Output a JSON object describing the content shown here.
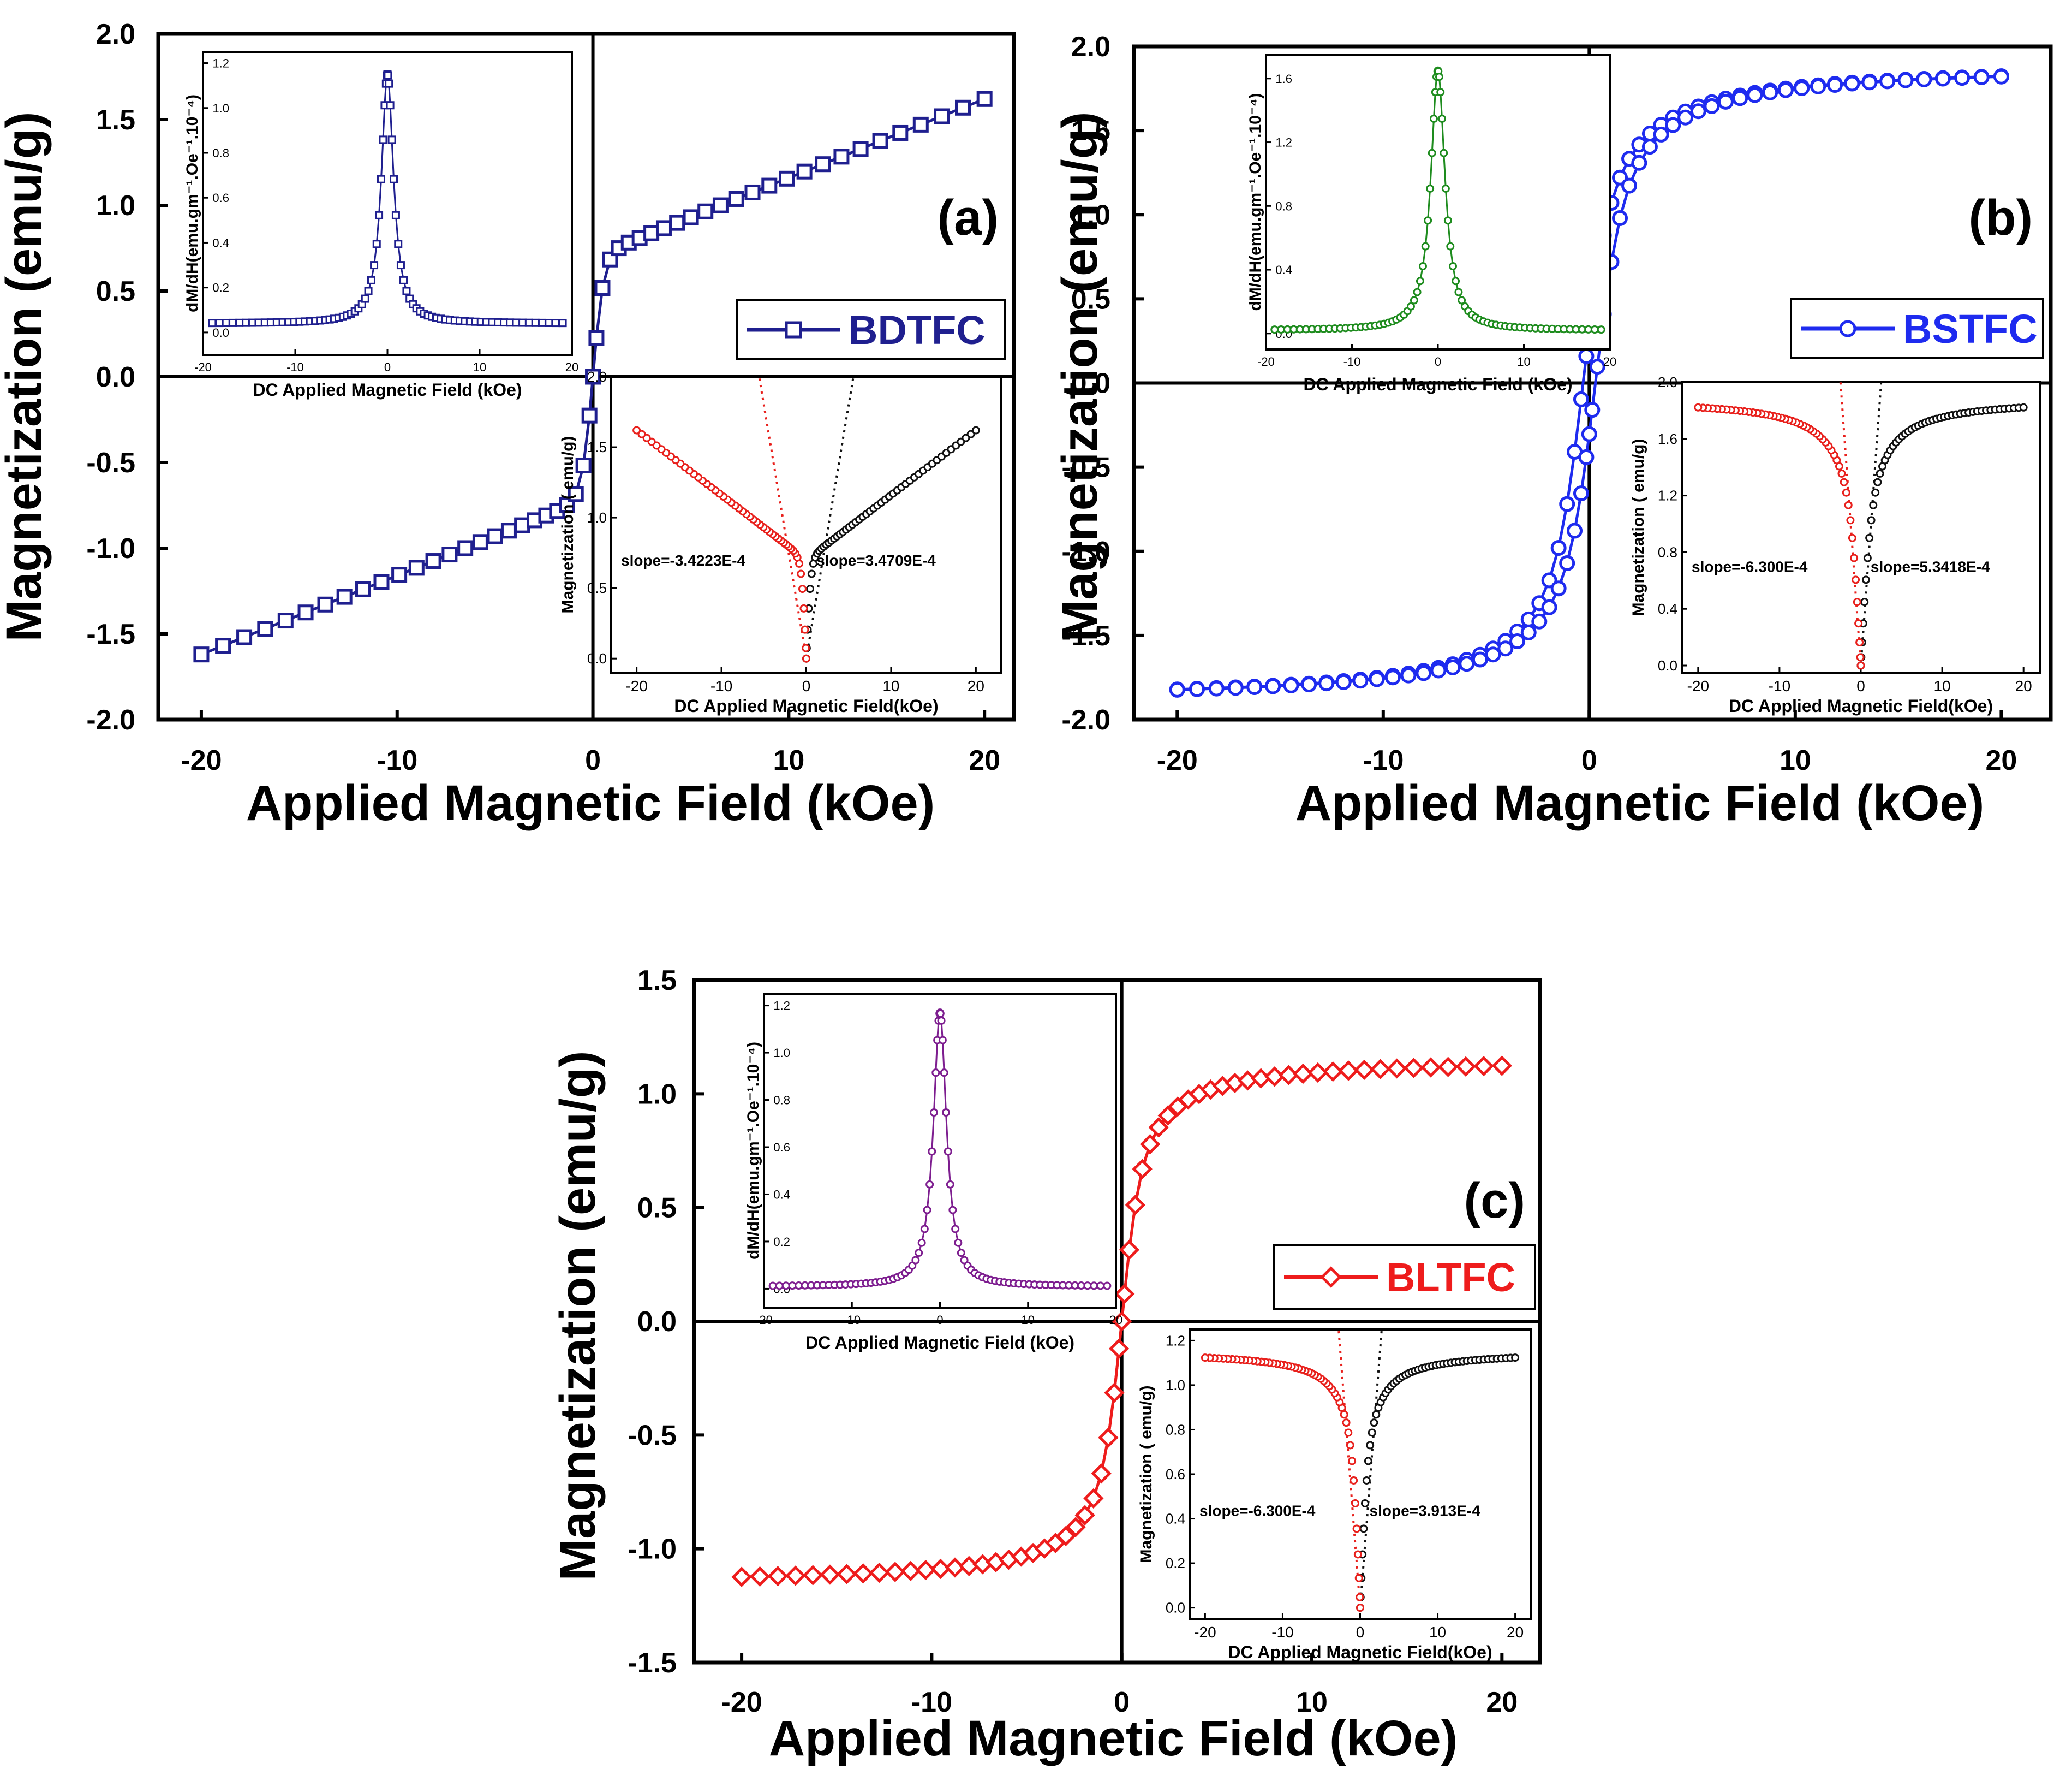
{
  "chart_data": [
    {
      "id": "a",
      "type": "line",
      "panel_label": "(a)",
      "xlabel": "Applied Magnetic Field (kOe)",
      "ylabel": "Magnetization (emu/g)",
      "xlim": [
        -22.2,
        21.5
      ],
      "ylim": [
        -2.0,
        2.0
      ],
      "xticks": [
        -20,
        -10,
        0,
        10,
        20
      ],
      "xtick_labels": [
        "-20",
        "-10",
        "0",
        "10",
        "20"
      ],
      "yticks": [
        -2.0,
        -1.5,
        -1.0,
        -0.5,
        0.0,
        0.5,
        1.0,
        1.5,
        2.0
      ],
      "ytick_labels": [
        "-2.0",
        "-1.5",
        "-1.0",
        "-0.5",
        "0.0",
        "0.5",
        "1.0",
        "1.5",
        "2.0"
      ],
      "legend": "BDTFC",
      "legend_position": "right-middle",
      "marker": "square",
      "color": "#1f1f8f",
      "series": [
        {
          "name": "BDTFC",
          "model": "soft-ferromagnet-plus-linear",
          "ms": 0.7,
          "a": 0.55,
          "b": 0.046,
          "xmin": -20,
          "xmax": 20,
          "n": 53
        }
      ],
      "main_labels": [
        "M–H"
      ],
      "inset_dmdh": {
        "xlabel": "DC Applied Magnetic Field (kOe)",
        "ylabel": "dM/dH(emu.gm⁻¹.Oe⁻¹.10⁻⁴)",
        "xlim": [
          -20,
          20
        ],
        "ylim": [
          -0.1,
          1.25
        ],
        "xticks": [
          -20,
          -10,
          0,
          10,
          20
        ],
        "xtick_labels": [
          "-20",
          "-10",
          "0",
          "10",
          "20"
        ],
        "yticks": [
          0.0,
          0.2,
          0.4,
          0.6,
          0.8,
          1.0,
          1.2
        ],
        "ytick_labels": [
          "0.0",
          "0.2",
          "0.4",
          "0.6",
          "0.8",
          "1.0",
          "1.2"
        ],
        "peak": 1.15,
        "width": 0.8,
        "base": 0.04,
        "color": "#1f1f8f"
      },
      "inset_fit": {
        "xlabel": "DC Applied Magnetic Field(kOe)",
        "ylabel": "Magnetization ( emu/g)",
        "xlim": [
          -23,
          23
        ],
        "ylim": [
          -0.1,
          2.0
        ],
        "xticks": [
          -20,
          -10,
          0,
          10,
          20
        ],
        "xtick_labels": [
          "-20",
          "-10",
          "0",
          "10",
          "20"
        ],
        "yticks": [
          0.0,
          0.5,
          1.0,
          1.5,
          2.0
        ],
        "ytick_labels": [
          "0.0",
          "0.5",
          "1.0",
          "1.5",
          "2.0"
        ],
        "slope_neg_label": "slope=-3.4223E-4",
        "slope_pos_label": "slope=3.4709E-4",
        "ms": 0.7,
        "a": 0.55,
        "b": 0.046,
        "line_slope": 0.36,
        "neg_color": "#e8201c",
        "pos_color": "#111111"
      }
    },
    {
      "id": "b",
      "type": "line",
      "panel_label": "(b)",
      "xlabel": "Applied Magnetic Field (kOe)",
      "ylabel": "Magnetization (emu/g)",
      "xlim": [
        -22.1,
        22.4
      ],
      "ylim": [
        -2.0,
        2.0
      ],
      "xticks": [
        -20,
        -10,
        0,
        10,
        20
      ],
      "xtick_labels": [
        "-20",
        "-10",
        "0",
        "10",
        "20"
      ],
      "yticks": [
        -2.0,
        -1.5,
        -1.0,
        -0.5,
        0.0,
        0.5,
        1.0,
        1.5,
        2.0
      ],
      "ytick_labels": [
        "-2.0",
        "-1.5",
        "-1.0",
        "-0.5",
        "0.0",
        "0.5",
        "1.0",
        "1.5",
        "2.0"
      ],
      "legend": "BSTFC",
      "legend_position": "right-middle",
      "marker": "circle",
      "color": "#1e2bef",
      "series": [
        {
          "name": "BSTFC",
          "model": "saturating",
          "ms": 1.85,
          "a": 1.6,
          "hc": 0.3,
          "xmin": -20,
          "xmax": 20,
          "n": 61
        }
      ],
      "inset_dmdh": {
        "xlabel": "DC Applied Magnetic Field (kOe)",
        "ylabel": "dM/dH(emu.gm⁻¹.Oe⁻¹.10⁻⁴)",
        "xlim": [
          -20,
          20
        ],
        "ylim": [
          -0.1,
          1.75
        ],
        "xticks": [
          -20,
          -10,
          0,
          10,
          20
        ],
        "xtick_labels": [
          "-20",
          "-10",
          "0",
          "10",
          "20"
        ],
        "yticks": [
          0.0,
          0.4,
          0.8,
          1.2,
          1.6
        ],
        "ytick_labels": [
          "0.0",
          "0.4",
          "0.8",
          "1.2",
          "1.6"
        ],
        "peak": 1.65,
        "width": 1.0,
        "base": 0.02,
        "color": "#1e8c1e"
      },
      "inset_fit": {
        "xlabel": "DC Applied Magnetic Field(kOe)",
        "ylabel": "Magnetization ( emu/g)",
        "xlim": [
          -22,
          22
        ],
        "ylim": [
          -0.05,
          2.0
        ],
        "xticks": [
          -20,
          -10,
          0,
          10,
          20
        ],
        "xtick_labels": [
          "-20",
          "-10",
          "0",
          "10",
          "20"
        ],
        "yticks": [
          0.0,
          0.4,
          0.8,
          1.2,
          1.6,
          2.0
        ],
        "ytick_labels": [
          "0.0",
          "0.4",
          "0.8",
          "1.2",
          "1.6",
          "2.0"
        ],
        "slope_neg_label": "slope=-6.300E-4",
        "slope_pos_label": "slope=5.3418E-4",
        "ms": 1.85,
        "a": 1.6,
        "b": 0,
        "line_slope": 0.8,
        "neg_color": "#e8201c",
        "pos_color": "#111111"
      }
    },
    {
      "id": "c",
      "type": "line",
      "panel_label": "(c)",
      "xlabel": "Applied Magnetic Field (kOe)",
      "ylabel": "Magnetization (emu/g)",
      "xlim": [
        -22.5,
        22.0
      ],
      "ylim": [
        -1.5,
        1.5
      ],
      "xticks": [
        -20,
        -10,
        0,
        10,
        20
      ],
      "xtick_labels": [
        "-20",
        "-10",
        "0",
        "10",
        "20"
      ],
      "yticks": [
        -1.5,
        -1.0,
        -0.5,
        0.0,
        0.5,
        1.0,
        1.5
      ],
      "ytick_labels": [
        "-1.5",
        "-1.0",
        "-0.5",
        "0.0",
        "0.5",
        "1.0",
        "1.5"
      ],
      "legend": "BLTFC",
      "legend_position": "right-middle",
      "marker": "diamond",
      "color": "#ee1c1c",
      "series": [
        {
          "name": "BLTFC",
          "model": "saturating",
          "ms": 1.13,
          "a": 1.2,
          "hc": 0.0,
          "xmin": -20,
          "xmax": 20,
          "n": 61
        }
      ],
      "inset_dmdh": {
        "xlabel": "DC Applied Magnetic Field (kOe)",
        "ylabel": "dM/dH(emu.gm⁻¹.Oe⁻¹.10⁻⁴)",
        "xlim": [
          -20,
          20
        ],
        "ylim": [
          -0.08,
          1.25
        ],
        "xticks": [
          -20,
          -10,
          0,
          10,
          20
        ],
        "xtick_labels": [
          "-20",
          "-10",
          "0",
          "10",
          "20"
        ],
        "yticks": [
          0.0,
          0.2,
          0.4,
          0.6,
          0.8,
          1.0,
          1.2
        ],
        "ytick_labels": [
          "0.0",
          "0.2",
          "0.4",
          "0.6",
          "0.8",
          "1.0",
          "1.2"
        ],
        "peak": 1.17,
        "width": 0.9,
        "base": 0.01,
        "color": "#7d1d8f"
      },
      "inset_fit": {
        "xlabel": "DC Applied Magnetic Field(kOe)",
        "ylabel": "Magnetization ( emu/g)",
        "xlim": [
          -22,
          22
        ],
        "ylim": [
          -0.05,
          1.25
        ],
        "xticks": [
          -20,
          -10,
          0,
          10,
          20
        ],
        "xtick_labels": [
          "-20",
          "-10",
          "0",
          "10",
          "20"
        ],
        "yticks": [
          0.0,
          0.2,
          0.4,
          0.6,
          0.8,
          1.0,
          1.2
        ],
        "ytick_labels": [
          "0.0",
          "0.2",
          "0.4",
          "0.6",
          "0.8",
          "1.0",
          "1.2"
        ],
        "slope_neg_label": "slope=-6.300E-4",
        "slope_pos_label": "slope=3.913E-4",
        "ms": 1.13,
        "a": 1.2,
        "b": 0,
        "line_slope": 0.45,
        "neg_color": "#e8201c",
        "pos_color": "#111111"
      }
    }
  ]
}
